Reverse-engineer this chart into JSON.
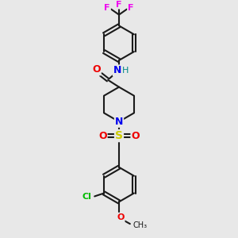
{
  "bg": "#e8e8e8",
  "bond_color": "#1a1a1a",
  "colors": {
    "N": "#0000ee",
    "O": "#ee0000",
    "S": "#cccc00",
    "F": "#ee00ee",
    "Cl": "#00bb00",
    "H": "#008888",
    "C": "#1a1a1a"
  },
  "lw": 1.5,
  "figsize": [
    3.0,
    3.0
  ],
  "dpi": 100,
  "ring_r": 22,
  "pip_r": 22
}
